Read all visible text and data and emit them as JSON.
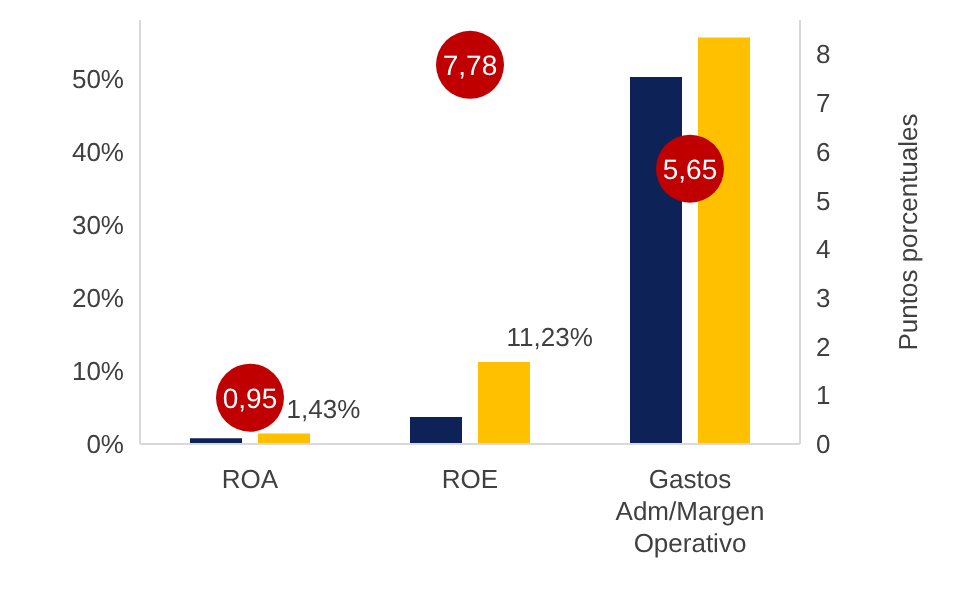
{
  "chart_data": {
    "type": "bar",
    "y2label": "Puntos porcentuales",
    "categories": [
      "ROA",
      "ROE",
      "Gastos Adm/Margen Operativo"
    ],
    "series": [
      {
        "color": "#0d2257",
        "values": [
          0.8,
          3.7,
          50.2
        ]
      },
      {
        "color": "#ffc000",
        "values": [
          1.43,
          11.23,
          55.6
        ],
        "value_labels": [
          "1,43%",
          "11,23%",
          null
        ]
      },
      {
        "type": "scatter",
        "axis": "y2",
        "color": "#c00000",
        "values": [
          0.95,
          7.78,
          5.65
        ],
        "value_labels": [
          "0,95",
          "7,78",
          "5,65"
        ]
      }
    ],
    "ylim": [
      0,
      58
    ],
    "yticks": [
      {
        "value": 0,
        "label": "0%"
      },
      {
        "value": 10,
        "label": "10%"
      },
      {
        "value": 20,
        "label": "20%"
      },
      {
        "value": 30,
        "label": "30%"
      },
      {
        "value": 40,
        "label": "40%"
      },
      {
        "value": 50,
        "label": "50%"
      }
    ],
    "y2lim": [
      0,
      8.7
    ],
    "y2ticks": [
      0,
      1,
      2,
      3,
      4,
      5,
      6,
      7,
      8
    ],
    "grid": false,
    "legend": false,
    "marker": "circle"
  }
}
